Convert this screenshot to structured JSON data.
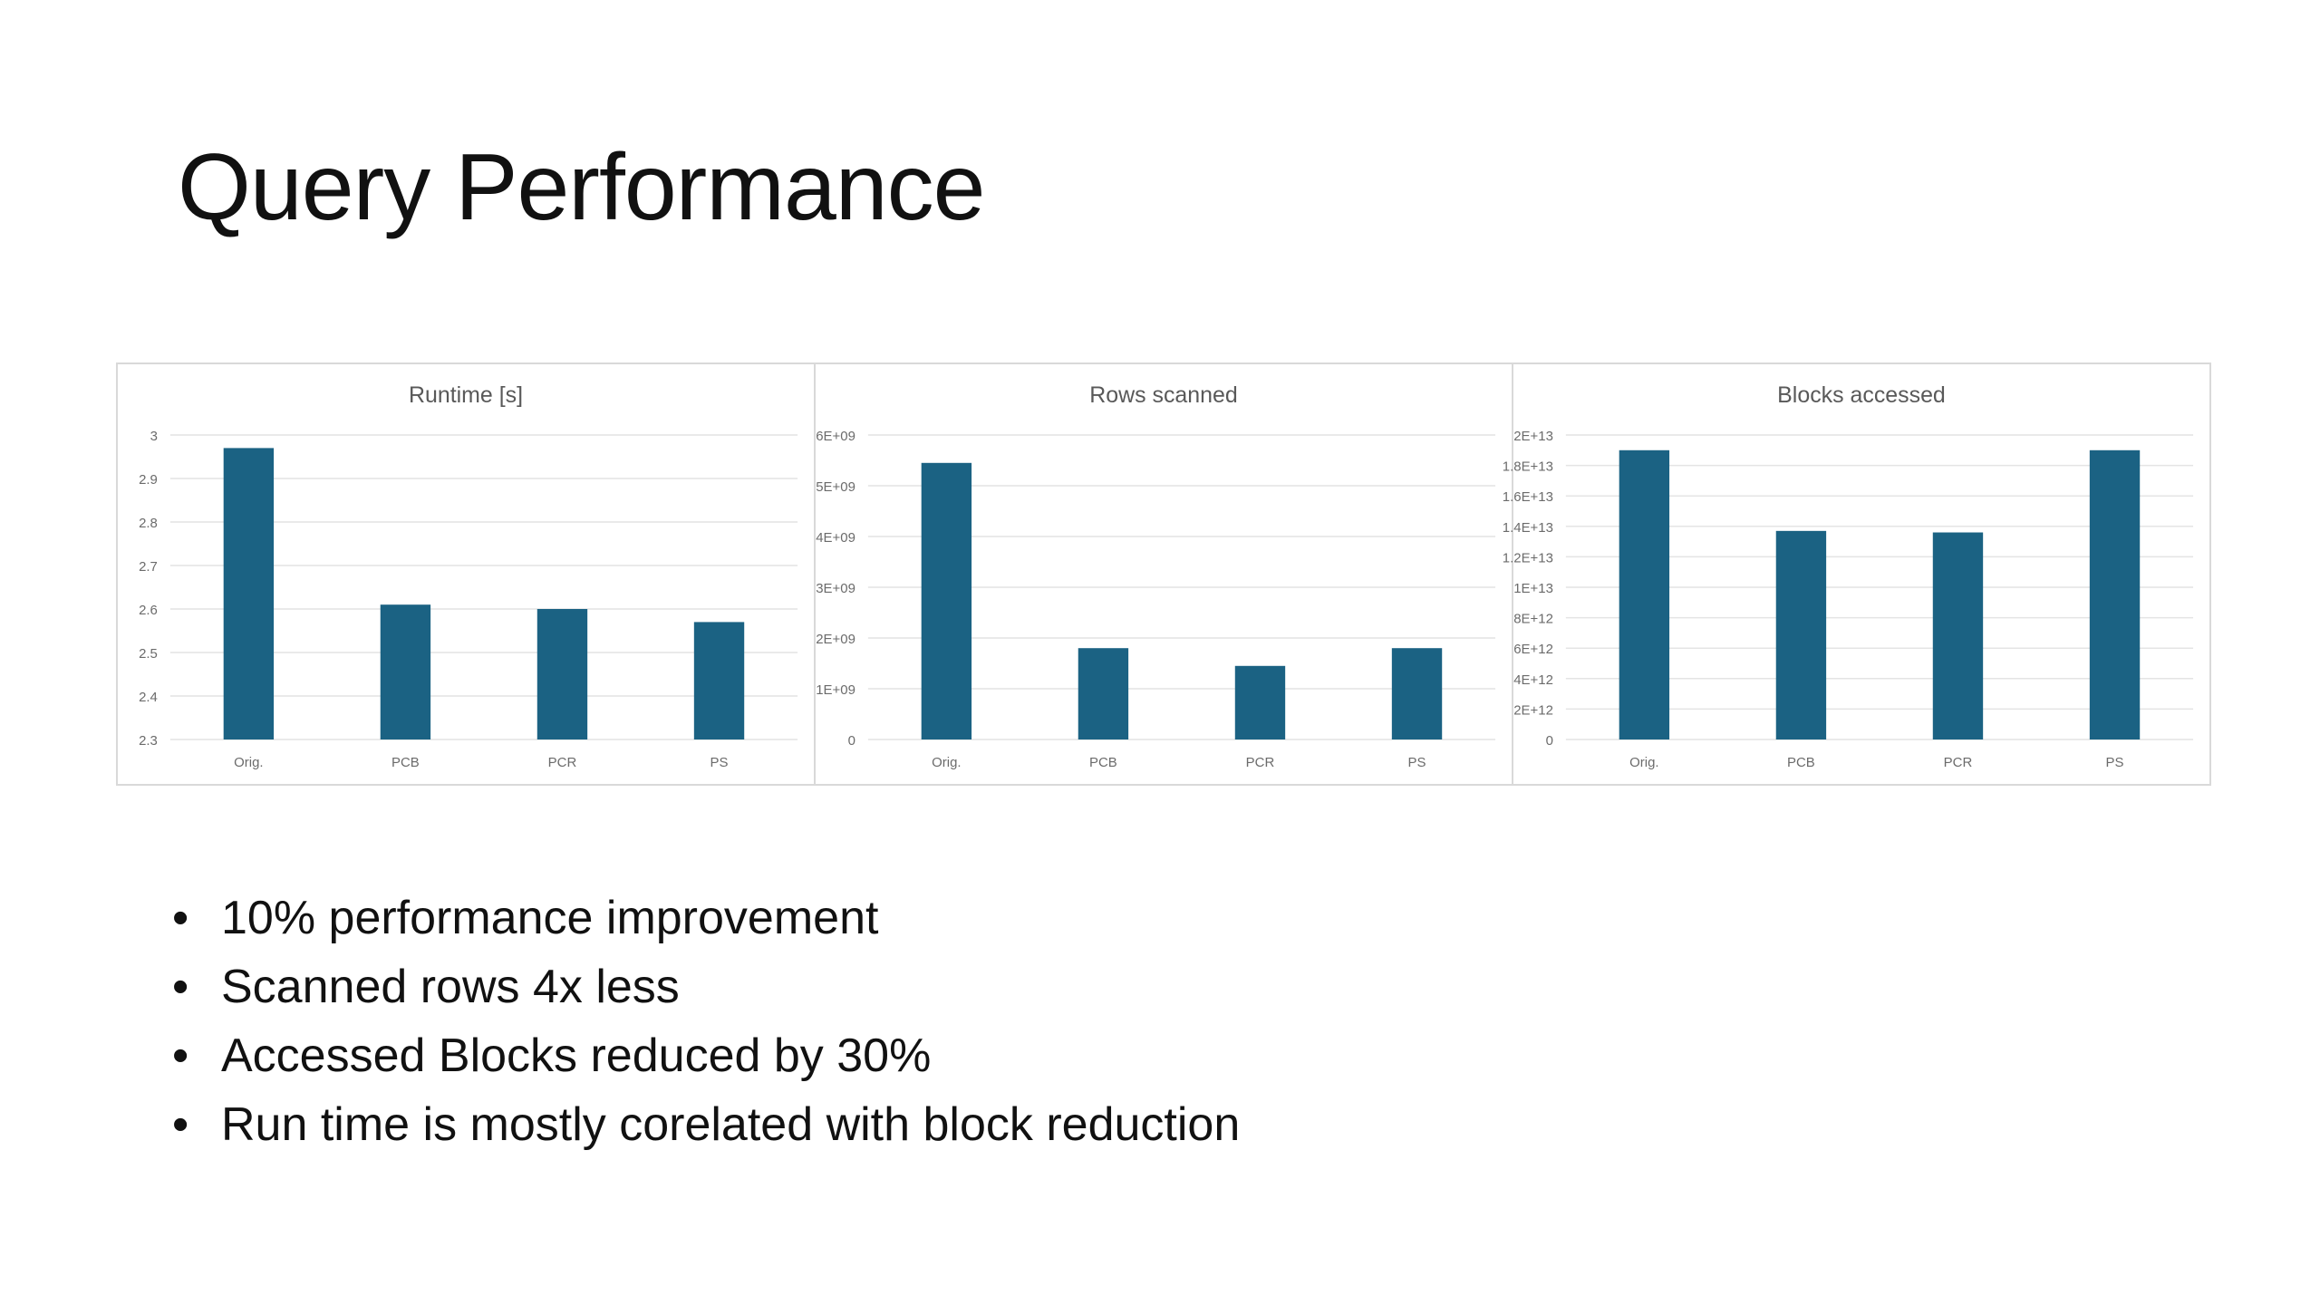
{
  "slide": {
    "title": "Query Performance",
    "bullets": [
      "10% performance improvement",
      "Scanned rows 4x less",
      "Accessed Blocks reduced by 30%",
      "Run time is mostly corelated with block reduction"
    ],
    "bullet_glyph": "•"
  },
  "colors": {
    "bar": "#1b6283",
    "grid": "#e4e4e4",
    "tick_text": "#6b6b6b",
    "title_text": "#595959"
  },
  "chart_data": [
    {
      "type": "bar",
      "title": "Runtime [s]",
      "categories": [
        "Orig.",
        "PCB",
        "PCR",
        "PS"
      ],
      "values": [
        2.97,
        2.61,
        2.6,
        2.57
      ],
      "ylim": [
        2.3,
        3
      ],
      "yticks": [
        2.3,
        2.4,
        2.5,
        2.6,
        2.7,
        2.8,
        2.9,
        3
      ],
      "ytick_labels": [
        "2.3",
        "2.4",
        "2.5",
        "2.6",
        "2.7",
        "2.8",
        "2.9",
        "3"
      ],
      "xlabel": "",
      "ylabel": "",
      "grid": true
    },
    {
      "type": "bar",
      "title": "Rows scanned",
      "categories": [
        "Orig.",
        "PCB",
        "PCR",
        "PS"
      ],
      "values": [
        5450000000,
        1800000000,
        1450000000,
        1800000000
      ],
      "ylim": [
        0,
        6000000000
      ],
      "yticks": [
        0,
        1000000000,
        2000000000,
        3000000000,
        4000000000,
        5000000000,
        6000000000
      ],
      "ytick_labels": [
        "0",
        "1E+09",
        "2E+09",
        "3E+09",
        "4E+09",
        "5E+09",
        "6E+09"
      ],
      "xlabel": "",
      "ylabel": "",
      "grid": true
    },
    {
      "type": "bar",
      "title": "Blocks accessed",
      "categories": [
        "Orig.",
        "PCB",
        "PCR",
        "PS"
      ],
      "values": [
        19000000000000,
        13700000000000,
        13600000000000,
        19000000000000
      ],
      "ylim": [
        0,
        20000000000000
      ],
      "yticks": [
        0,
        2000000000000,
        4000000000000,
        6000000000000,
        8000000000000,
        10000000000000,
        12000000000000,
        14000000000000,
        16000000000000,
        18000000000000,
        20000000000000
      ],
      "ytick_labels": [
        "0",
        "2E+12",
        "4E+12",
        "6E+12",
        "8E+12",
        "1E+13",
        "1.2E+13",
        "1.4E+13",
        "1.6E+13",
        "1.8E+13",
        "2E+13"
      ],
      "xlabel": "",
      "ylabel": "",
      "grid": true
    }
  ]
}
